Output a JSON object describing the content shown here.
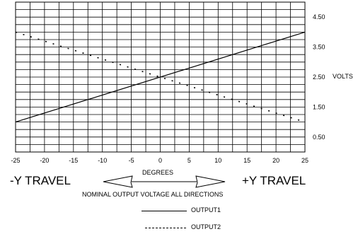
{
  "chart_data": {
    "type": "line",
    "title": "",
    "xlabel": "DEGREES",
    "ylabel": "VOLTS",
    "xlim": [
      -25,
      25
    ],
    "ylim": [
      0,
      5
    ],
    "xticks": [
      -25,
      -20,
      -15,
      -10,
      -5,
      0,
      5,
      10,
      15,
      20,
      25
    ],
    "yticks": [
      0.5,
      1.5,
      2.5,
      3.5,
      4.5
    ],
    "ytick_labels": [
      "0.50",
      "1.50",
      "2.50",
      "3.50",
      "4.50"
    ],
    "grid": true,
    "series": [
      {
        "name": "OUTPUT1",
        "style": "solid",
        "x": [
          -25,
          25
        ],
        "y": [
          1.0,
          4.0
        ]
      },
      {
        "name": "OUTPUT2",
        "style": "dashed",
        "x": [
          -25,
          25
        ],
        "y": [
          4.0,
          1.0
        ]
      }
    ],
    "annotations": {
      "left_travel": "-Y TRAVEL",
      "right_travel": "+Y TRAVEL",
      "caption": "NOMINAL OUTPUT VOLTAGE ALL DIRECTIONS"
    },
    "legend_position": "bottom-center"
  },
  "colors": {
    "line": "#000000",
    "grid": "#000000",
    "background": "#ffffff"
  }
}
